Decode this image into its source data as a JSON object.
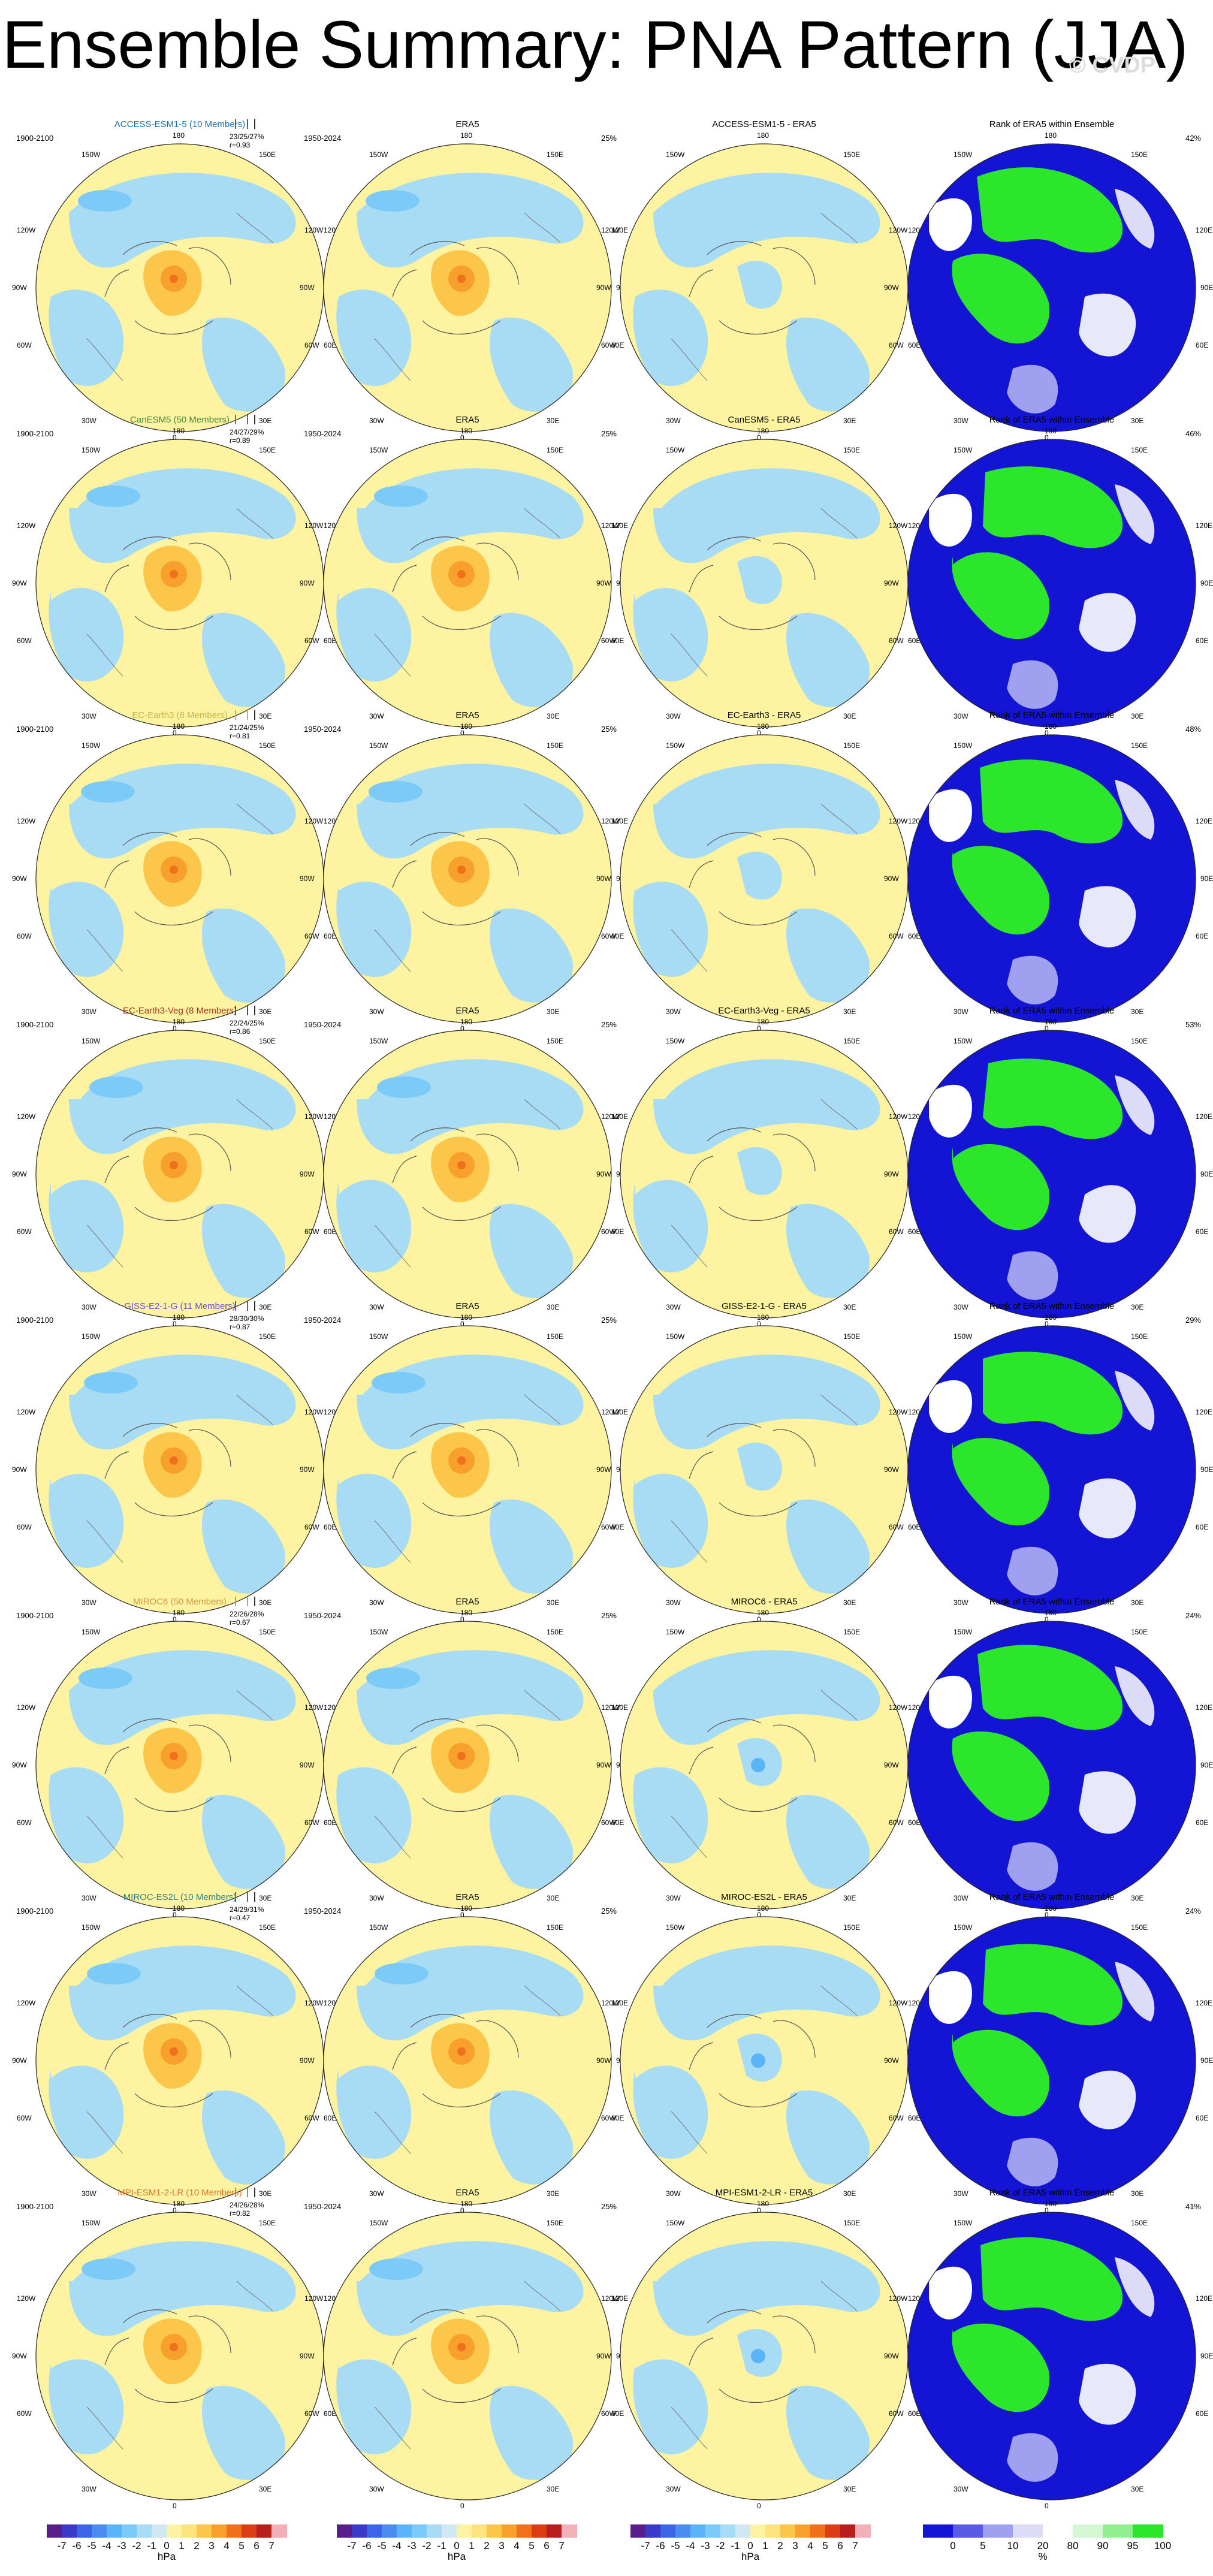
{
  "page": {
    "title": "Ensemble Summary: PNA Pattern (JJA)",
    "watermark": "© CVDP"
  },
  "map_labels": {
    "top": "180",
    "bottom": "0",
    "left_top": "150W",
    "left_upper": "120W",
    "left_mid": "90W",
    "left_lower": "60W",
    "left_bottom": "30W",
    "right_top": "150E",
    "right_upper": "120E",
    "right_mid": "90E",
    "right_lower": "60E",
    "right_bottom": "30E"
  },
  "columns": {
    "era5_title": "ERA5",
    "era5_period": "1950-2024",
    "era5_pct": "25%",
    "rank_title": "Rank of ERA5 within Ensemble",
    "model_period": "1900-2100"
  },
  "rows": [
    {
      "model": "ACCESS-ESM1-5 (10 Members)",
      "model_color": "#1a6fb0",
      "stats": "23/25/27%",
      "r": "r=0.93",
      "diff": "ACCESS-ESM1-5 - ERA5",
      "rank_pct": "42%"
    },
    {
      "model": "CanESM5 (50 Members)",
      "model_color": "#4c8a3c",
      "stats": "24/27/29%",
      "r": "r=0.89",
      "diff": "CanESM5 - ERA5",
      "rank_pct": "46%"
    },
    {
      "model": "EC-Earth3 (8 Members)",
      "model_color": "#c8b44a",
      "stats": "21/24/25%",
      "r": "r=0.81",
      "diff": "EC-Earth3 - ERA5",
      "rank_pct": "48%"
    },
    {
      "model": "EC-Earth3-Veg (8 Members)",
      "model_color": "#a4341c",
      "stats": "22/24/25%",
      "r": "r=0.86",
      "diff": "EC-Earth3-Veg - ERA5",
      "rank_pct": "53%"
    },
    {
      "model": "GISS-E2-1-G (11 Members)",
      "model_color": "#6a4fc8",
      "stats": "28/30/30%",
      "r": "r=0.87",
      "diff": "GISS-E2-1-G - ERA5",
      "rank_pct": "29%"
    },
    {
      "model": "MIROC6 (50 Members)",
      "model_color": "#d49a48",
      "stats": "22/26/28%",
      "r": "r=0.67",
      "diff": "MIROC6 - ERA5",
      "rank_pct": "24%"
    },
    {
      "model": "MIROC-ES2L (10 Members)",
      "model_color": "#2f7f86",
      "stats": "24/29/31%",
      "r": "r=0.47",
      "diff": "MIROC-ES2L - ERA5",
      "rank_pct": "24%"
    },
    {
      "model": "MPI-ESM1-2-LR (10 Members)",
      "model_color": "#d8762c",
      "stats": "24/26/28%",
      "r": "r=0.82",
      "diff": "MPI-ESM1-2-LR - ERA5",
      "rank_pct": "41%"
    }
  ],
  "colorbar_hpa": {
    "ticks": [
      "-7",
      "-6",
      "-5",
      "-4",
      "-3",
      "-2",
      "-1",
      "0",
      "1",
      "2",
      "3",
      "4",
      "5",
      "6",
      "7"
    ],
    "unit": "hPa",
    "colors": [
      "#5a1e8c",
      "#3a3ac8",
      "#3c64e6",
      "#4a8cf0",
      "#5ab4f8",
      "#7ccaf8",
      "#a8dcf4",
      "#cfe8f4",
      "#fdf3a0",
      "#fde47c",
      "#fbc64a",
      "#f8a02c",
      "#f0701c",
      "#dc3c14",
      "#b81e1e",
      "#f4b0b8"
    ]
  },
  "colorbar_rank": {
    "ticks": [
      "0",
      "5",
      "10",
      "20",
      "80",
      "90",
      "95",
      "100"
    ],
    "unit": "%",
    "colors": [
      "#1414d4",
      "#5a5ae6",
      "#a0a0f0",
      "#dcdcf8",
      "#ffffff",
      "#d4f8d4",
      "#90f090",
      "#2ce62c"
    ]
  }
}
